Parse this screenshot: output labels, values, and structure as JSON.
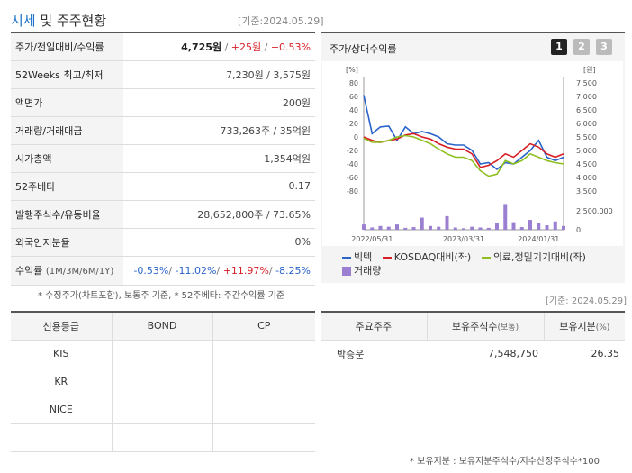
{
  "header": {
    "title_highlight": "시세",
    "title_rest": " 및 주주현황",
    "ref_date": "[기준:2024.05.29]"
  },
  "info_rows": [
    {
      "label": "주가/전일대비/수익률",
      "price": "4,725원",
      "change": "+25원",
      "rate": "+0.53%"
    },
    {
      "label": "52Weeks 최고/최저",
      "value": "7,230원 / 3,575원"
    },
    {
      "label": "액면가",
      "value": "200원"
    },
    {
      "label": "거래량/거래대금",
      "value": "733,263주 / 35억원"
    },
    {
      "label": "시가총액",
      "value": "1,354억원"
    },
    {
      "label": "52주베타",
      "value": "0.17"
    },
    {
      "label": "발행주식수/유동비율",
      "value": "28,652,800주 / 73.65%"
    },
    {
      "label": "외국인지분율",
      "value": "0%"
    },
    {
      "label": "수익률",
      "label_small": "(1M/3M/6M/1Y)",
      "r1": "-0.53%",
      "r2": "-11.02%",
      "r3": "+11.97%",
      "r4": "-8.25%"
    }
  ],
  "left_note": "* 수정주가(차트포함), 보통주 기준, * 52주베타: 주간수익률 기준",
  "chart_panel": {
    "title": "주가/상대수익률",
    "tabs": [
      "1",
      "2",
      "3"
    ],
    "active_tab": "1",
    "left_unit": "[%]",
    "right_unit": "[원]",
    "legend": [
      {
        "name": "빅텍",
        "color": "#2a63c9"
      },
      {
        "name": "KOSDAQ대비(좌)",
        "color": "#d81f26"
      },
      {
        "name": "의료,정밀기기대비(좌)",
        "color": "#8fbf1f"
      },
      {
        "name": "거래량",
        "color": "#9b7fd1"
      }
    ]
  },
  "chart_data": {
    "type": "line",
    "x_ticks": [
      "2022/05/31",
      "2023/03/31",
      "2024/01/31"
    ],
    "left_axis": {
      "unit": "[%]",
      "ylim": [
        -80,
        80
      ],
      "ticks": [
        80,
        60,
        40,
        20,
        0,
        -20,
        -40,
        -60,
        -80
      ]
    },
    "right_axis": {
      "unit": "[원]",
      "ylim": [
        3500,
        7500
      ],
      "ticks": [
        "7,500",
        "7,000",
        "6,500",
        "6,000",
        "5,500",
        "5,000",
        "4,500",
        "4,000",
        "3,500"
      ]
    },
    "volume_axis": {
      "ticks": [
        "2,500,000",
        "0"
      ],
      "ylim": [
        0,
        2500000
      ]
    },
    "series": [
      {
        "name": "빅텍",
        "color": "#2a63c9",
        "values": [
          62,
          5,
          15,
          16,
          -5,
          15,
          5,
          8,
          5,
          0,
          -10,
          -12,
          -12,
          -20,
          -40,
          -38,
          -48,
          -38,
          -40,
          -30,
          -20,
          -5,
          -30,
          -35,
          -30
        ]
      },
      {
        "name": "KOSDAQ대비(좌)",
        "color": "#d81f26",
        "values": [
          0,
          -5,
          -8,
          -5,
          -3,
          3,
          5,
          0,
          -3,
          -10,
          -15,
          -18,
          -18,
          -25,
          -45,
          -42,
          -35,
          -25,
          -30,
          -20,
          -10,
          -15,
          -25,
          -30,
          -25
        ]
      },
      {
        "name": "의료,정밀기기대비(좌)",
        "color": "#8fbf1f",
        "values": [
          -2,
          -8,
          -8,
          -5,
          0,
          2,
          0,
          -5,
          -10,
          -18,
          -25,
          -30,
          -30,
          -35,
          -50,
          -58,
          -55,
          -35,
          -40,
          -35,
          -25,
          -30,
          -35,
          -38,
          -40
        ]
      }
    ],
    "volume": [
      700000,
      300000,
      500000,
      400000,
      700000,
      250000,
      350000,
      1600000,
      500000,
      400000,
      1800000,
      300000,
      200000,
      400000,
      300000,
      250000,
      900000,
      3400000,
      1000000,
      350000,
      1300000,
      900000,
      600000,
      1100000,
      500000
    ]
  },
  "credit_table": {
    "headers": [
      "신용등급",
      "BOND",
      "CP"
    ],
    "rows": [
      [
        "KIS",
        "",
        ""
      ],
      [
        "KR",
        "",
        ""
      ],
      [
        "NICE",
        "",
        ""
      ],
      [
        "",
        "",
        ""
      ]
    ]
  },
  "holders_table": {
    "ref_date": "[기준: 2024.05.29]",
    "headers": [
      "주요주주",
      "보유주식수",
      "(보통)",
      "보유지분",
      "(%)"
    ],
    "rows": [
      {
        "name": "박승운",
        "shares": "7,548,750",
        "pct": "26.35"
      }
    ],
    "note": "* 보유지분 : 보유지분주식수/지수산정주식수*100"
  }
}
